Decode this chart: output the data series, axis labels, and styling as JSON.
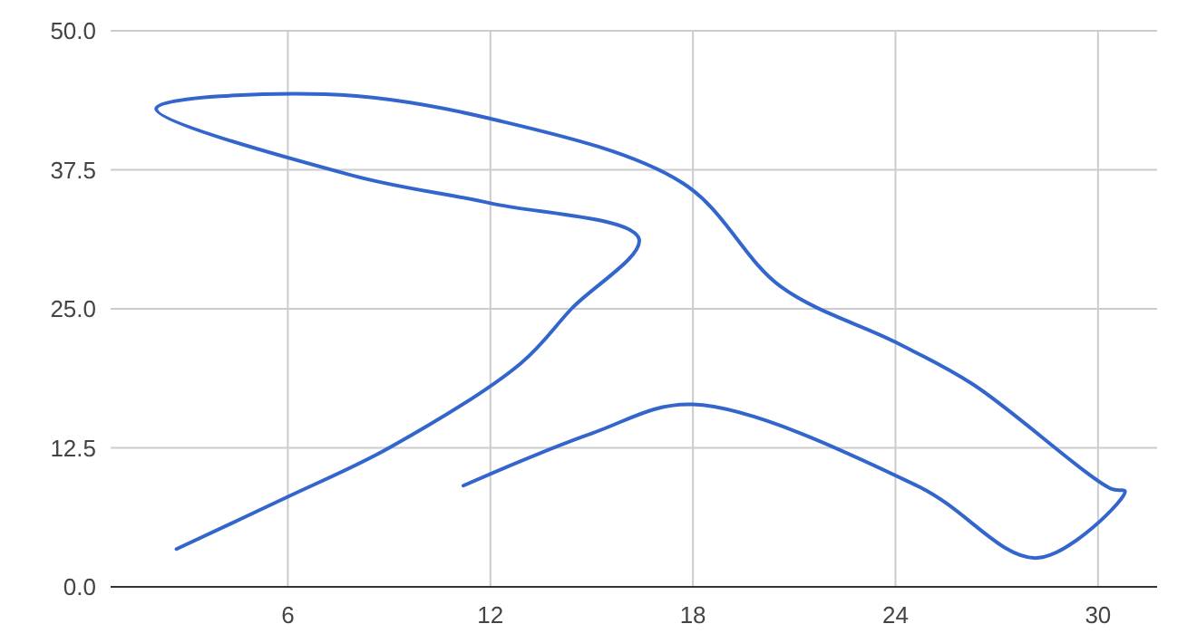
{
  "chart_data": {
    "type": "line",
    "x": [
      2.7,
      6,
      9,
      12.9,
      14.4,
      16.4,
      12,
      7.9,
      2.1,
      7.1,
      12,
      17.7,
      20.6,
      24,
      26.3,
      30.4,
      30.8,
      28.2,
      24.7,
      18,
      15,
      11.2
    ],
    "series": [
      {
        "color": "#3366cc",
        "values": [
          3.4,
          8.1,
          12.5,
          20.1,
          25,
          31.3,
          34.5,
          37,
          43,
          44.3,
          42.1,
          36.3,
          27,
          22,
          18.2,
          8.8,
          8.6,
          2.6,
          9,
          16.4,
          13.8,
          9.1
        ]
      }
    ],
    "xlim": [
      0.75,
      31.75
    ],
    "xticks": [
      6,
      12,
      18,
      24,
      30
    ],
    "ylim": [
      0,
      50
    ],
    "yticks": [
      {
        "value": 0,
        "label": "0.0"
      },
      {
        "value": 12.5,
        "label": "12.5"
      },
      {
        "value": 25,
        "label": "25.0"
      },
      {
        "value": 37.5,
        "label": "37.5"
      },
      {
        "value": 50,
        "label": "50.0"
      }
    ],
    "grid": true,
    "marker": "none",
    "line_style": "solid"
  }
}
